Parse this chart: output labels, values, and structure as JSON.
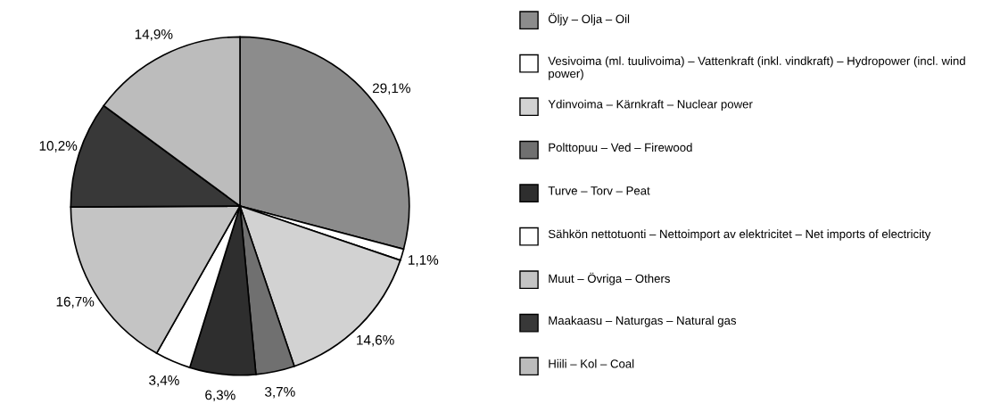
{
  "chart_data": {
    "type": "pie",
    "categories": [
      "Öljy – Olja – Oil",
      "Vesivoima (ml. tuulivoima) – Vattenkraft (inkl. vindkraft) – Hydropower (incl. wind power)",
      "Ydinvoima – Kärnkraft – Nuclear power",
      "Polttopuu – Ved – Firewood",
      "Turve – Torv – Peat",
      "Sähkön nettotuonti – Nettoimport av elektricitet – Net imports of electricity",
      "Muut – Övriga – Others",
      "Maakaasu – Naturgas – Natural gas",
      "Hiili – Kol – Coal"
    ],
    "values": [
      29.1,
      1.1,
      14.6,
      3.7,
      6.3,
      3.4,
      16.7,
      10.2,
      14.9
    ],
    "value_labels": [
      "29,1%",
      "1,1%",
      "14,6%",
      "3,7%",
      "6,3%",
      "3,4%",
      "16,7%",
      "10,2%",
      "14,9%"
    ],
    "colors": [
      "#8c8c8c",
      "#ffffff",
      "#d2d2d2",
      "#707070",
      "#2e2e2e",
      "#ffffff",
      "#c4c4c4",
      "#383838",
      "#bcbcbc"
    ],
    "legend": "right"
  }
}
